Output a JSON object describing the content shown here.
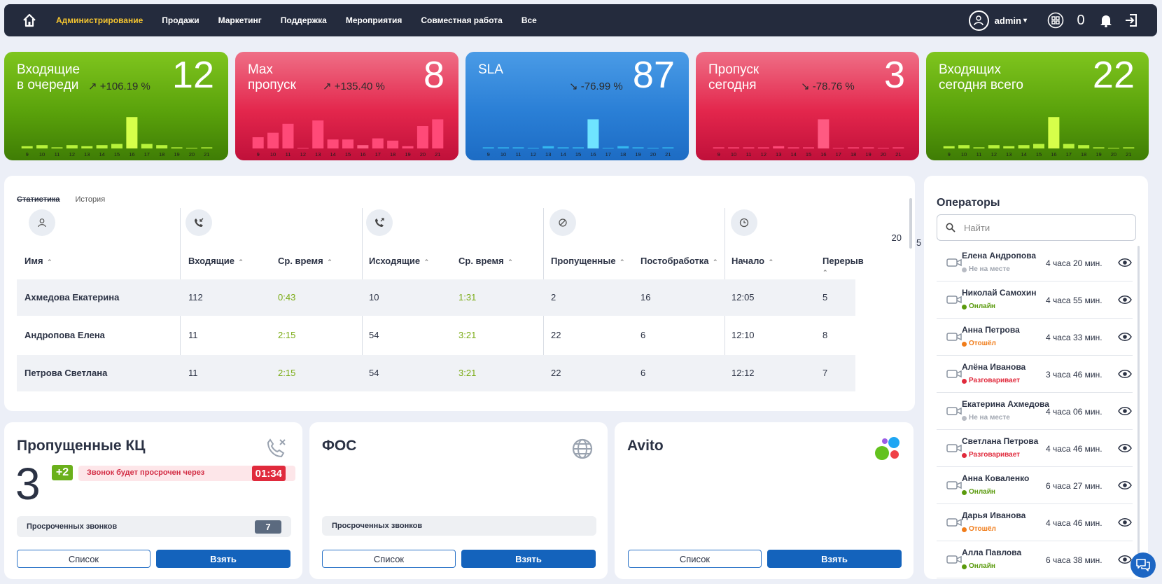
{
  "nav": {
    "items": [
      "Администрирование",
      "Продажи",
      "Маркетинг",
      "Поддержка",
      "Мероприятия",
      "Совместная работа",
      "Все"
    ],
    "user": "admin",
    "counter": "0"
  },
  "kpis": [
    {
      "title": "Входящие\nв очереди",
      "value": "12",
      "delta": "↗ +106.19 %",
      "color": "green",
      "labels": [
        "9",
        "10",
        "11",
        "12",
        "13",
        "14",
        "15",
        "16",
        "17",
        "18",
        "19",
        "20",
        "21"
      ],
      "bars": [
        2,
        3,
        1,
        3,
        2,
        3,
        4,
        28,
        4,
        3,
        1,
        0,
        1
      ]
    },
    {
      "title": "Max\nпропуск",
      "value": "8",
      "delta": "↗ +135.40 %",
      "color": "red",
      "labels": [
        "9",
        "10",
        "11",
        "12",
        "13",
        "14",
        "15",
        "16",
        "17",
        "18",
        "19",
        "20",
        "21"
      ],
      "bars": [
        10,
        14,
        22,
        0,
        25,
        8,
        8,
        3,
        9,
        7,
        2,
        20,
        26
      ]
    },
    {
      "title": "SLA",
      "value": "87",
      "delta": "↘ -76.99 %",
      "color": "blue",
      "labels": [
        "9",
        "10",
        "11",
        "12",
        "13",
        "14",
        "15",
        "16",
        "17",
        "18",
        "19",
        "20",
        "21"
      ],
      "bars": [
        1,
        1,
        1,
        0,
        2,
        1,
        1,
        26,
        0,
        2,
        1,
        0,
        1
      ]
    },
    {
      "title": "Пропуск\nсегодня",
      "value": "3",
      "delta": "↘ -78.76 %",
      "color": "red",
      "labels": [
        "9",
        "10",
        "11",
        "12",
        "13",
        "14",
        "15",
        "16",
        "17",
        "18",
        "19",
        "20",
        "21"
      ],
      "bars": [
        1,
        1,
        1,
        1,
        2,
        1,
        1,
        26,
        0,
        1,
        1,
        0,
        1
      ]
    },
    {
      "title": "Входящих\nсегодня всего",
      "value": "22",
      "delta": "",
      "color": "green",
      "labels": [
        "9",
        "10",
        "11",
        "12",
        "13",
        "14",
        "15",
        "16",
        "17",
        "18",
        "19",
        "20",
        "21"
      ],
      "bars": [
        2,
        3,
        1,
        3,
        2,
        3,
        4,
        28,
        4,
        3,
        1,
        0,
        1
      ]
    }
  ],
  "stats": {
    "tab_active": "Статистика",
    "tab_other": "История",
    "count_a": "20",
    "count_b": "5",
    "headers": [
      "Имя",
      "Входящие",
      "Ср. время",
      "Исходящие",
      "Ср. время",
      "Пропущенные",
      "Постобработка",
      "Начало",
      "Перерыв"
    ],
    "rows": [
      [
        "Ахмедова Екатерина",
        "112",
        "0:43",
        "10",
        "1:31",
        "2",
        "16",
        "12:05",
        "5"
      ],
      [
        "Андропова Елена",
        "11",
        "2:15",
        "54",
        "3:21",
        "22",
        "6",
        "12:10",
        "8"
      ],
      [
        "Петрова Светлана",
        "11",
        "2:15",
        "54",
        "3:21",
        "22",
        "6",
        "12:12",
        "7"
      ]
    ]
  },
  "missed": {
    "title": "Пропущенные КЦ",
    "count": "3",
    "plus": "+2",
    "warning": "Звонок будет просрочен через",
    "timer": "01:34",
    "overdue_label": "Просроченных звонков",
    "overdue_count": "7",
    "list_btn": "Список",
    "take_btn": "Взять"
  },
  "fos": {
    "title": "ФОС",
    "overdue_label": "Просроченных звонков",
    "list_btn": "Список",
    "take_btn": "Взять"
  },
  "avito": {
    "title": "Avito",
    "list_btn": "Список",
    "take_btn": "Взять"
  },
  "operators": {
    "title": "Операторы",
    "search_placeholder": "Найти",
    "items": [
      {
        "name": "Елена Андропова",
        "status": "Не на месте",
        "time": "4 часа 20 мин.",
        "color": "#b8bcc4"
      },
      {
        "name": "Николай Самохин",
        "status": "Онлайн",
        "time": "4 часа  55 мин.",
        "color": "#5a9a0c"
      },
      {
        "name": "Анна Петрова",
        "status": "Отошёл",
        "time": "4 часа  33 мин.",
        "color": "#f07c1a"
      },
      {
        "name": "Алёна Иванова",
        "status": "Разговаривает",
        "time": "3 часа 46 мин.",
        "color": "#e02a3c"
      },
      {
        "name": "Екатерина Ахмедова",
        "status": "Не на месте",
        "time": "4 часа 06 мин.",
        "color": "#b8bcc4"
      },
      {
        "name": "Светлана Петрова",
        "status": "Разговаривает",
        "time": "4 часа 46 мин.",
        "color": "#e02a3c"
      },
      {
        "name": "Анна Коваленко",
        "status": "Онлайн",
        "time": "6 часа  27 мин.",
        "color": "#5a9a0c"
      },
      {
        "name": "Дарья Иванова",
        "status": "Отошёл",
        "time": "4 часа 46 мин.",
        "color": "#f07c1a"
      },
      {
        "name": "Алла Павлова",
        "status": "Онлайн",
        "time": "6 часа  38 мин.",
        "color": "#5a9a0c"
      }
    ]
  }
}
